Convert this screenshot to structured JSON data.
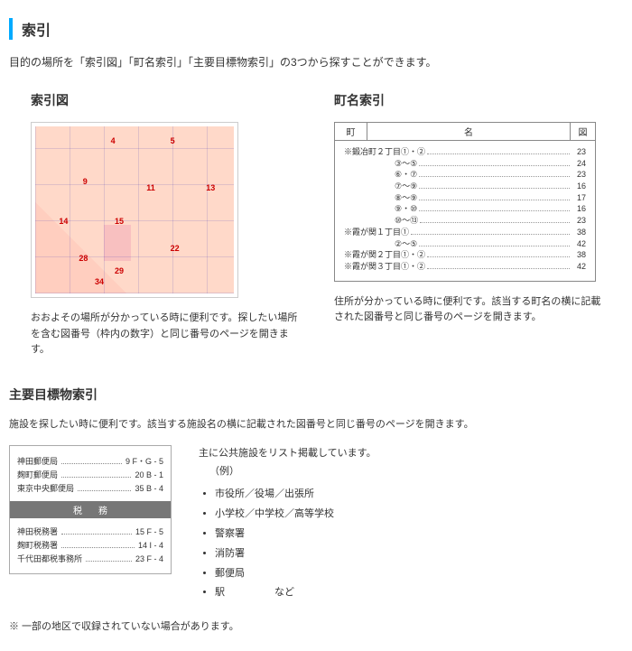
{
  "page": {
    "title": "索引",
    "intro": "目的の場所を「索引図」「町名索引」「主要目標物索引」の3つから探すことができます。"
  },
  "index_map": {
    "title": "索引図",
    "desc": "おおよその場所が分かっている時に便利です。探したい場所を含む図番号（枠内の数字）と同じ番号のページを開きます。",
    "grid_numbers": [
      "4",
      "5",
      "9",
      "11",
      "13",
      "14",
      "15",
      "22",
      "28",
      "29",
      "34"
    ]
  },
  "town_index": {
    "title": "町名索引",
    "header": {
      "machi": "町",
      "name": "名",
      "map": "図"
    },
    "rows": [
      {
        "label": "※鍛冶町２丁目①・②",
        "page": "23",
        "indent": 0
      },
      {
        "label": "③～⑤",
        "page": "24",
        "indent": 2
      },
      {
        "label": "⑥・⑦",
        "page": "23",
        "indent": 2
      },
      {
        "label": "⑦～⑨",
        "page": "16",
        "indent": 2
      },
      {
        "label": "⑧～⑨",
        "page": "17",
        "indent": 2
      },
      {
        "label": "⑨・⑩",
        "page": "16",
        "indent": 2
      },
      {
        "label": "⑩～⑬",
        "page": "23",
        "indent": 2
      },
      {
        "label": "※霞が関１丁目①",
        "page": "38",
        "indent": 0
      },
      {
        "label": "②～⑤",
        "page": "42",
        "indent": 2
      },
      {
        "label": "※霞が関２丁目①・②",
        "page": "38",
        "indent": 0
      },
      {
        "label": "※霞が関３丁目①・②",
        "page": "42",
        "indent": 0
      }
    ],
    "desc": "住所が分かっている時に便利です。該当する町名の横に記載された図番号と同じ番号のページを開きます。"
  },
  "landmark": {
    "title": "主要目標物索引",
    "intro": "施設を探したい時に便利です。該当する施設名の横に記載された図番号と同じ番号のページを開きます。",
    "left_items_top": [
      {
        "label": "神田郵便局",
        "val": "9  F・G - 5"
      },
      {
        "label": "麹町郵便局",
        "val": "20  B - 1"
      },
      {
        "label": "東京中央郵便局",
        "val": "35  B - 4"
      }
    ],
    "band": "税務",
    "left_items_bottom": [
      {
        "label": "神田税務署",
        "val": "15  F - 5"
      },
      {
        "label": "麹町税務署",
        "val": "14  I - 4"
      },
      {
        "label": "千代田都税事務所",
        "val": "23  F - 4"
      }
    ],
    "right_heading": "主に公共施設をリスト掲載しています。",
    "right_example_label": "（例）",
    "right_list": [
      "市役所／役場／出張所",
      "小学校／中学校／高等学校",
      "警察署",
      "消防署",
      "郵便局",
      "駅　　　　　など"
    ]
  },
  "note": "※ 一部の地区で収録されていない場合があります。"
}
